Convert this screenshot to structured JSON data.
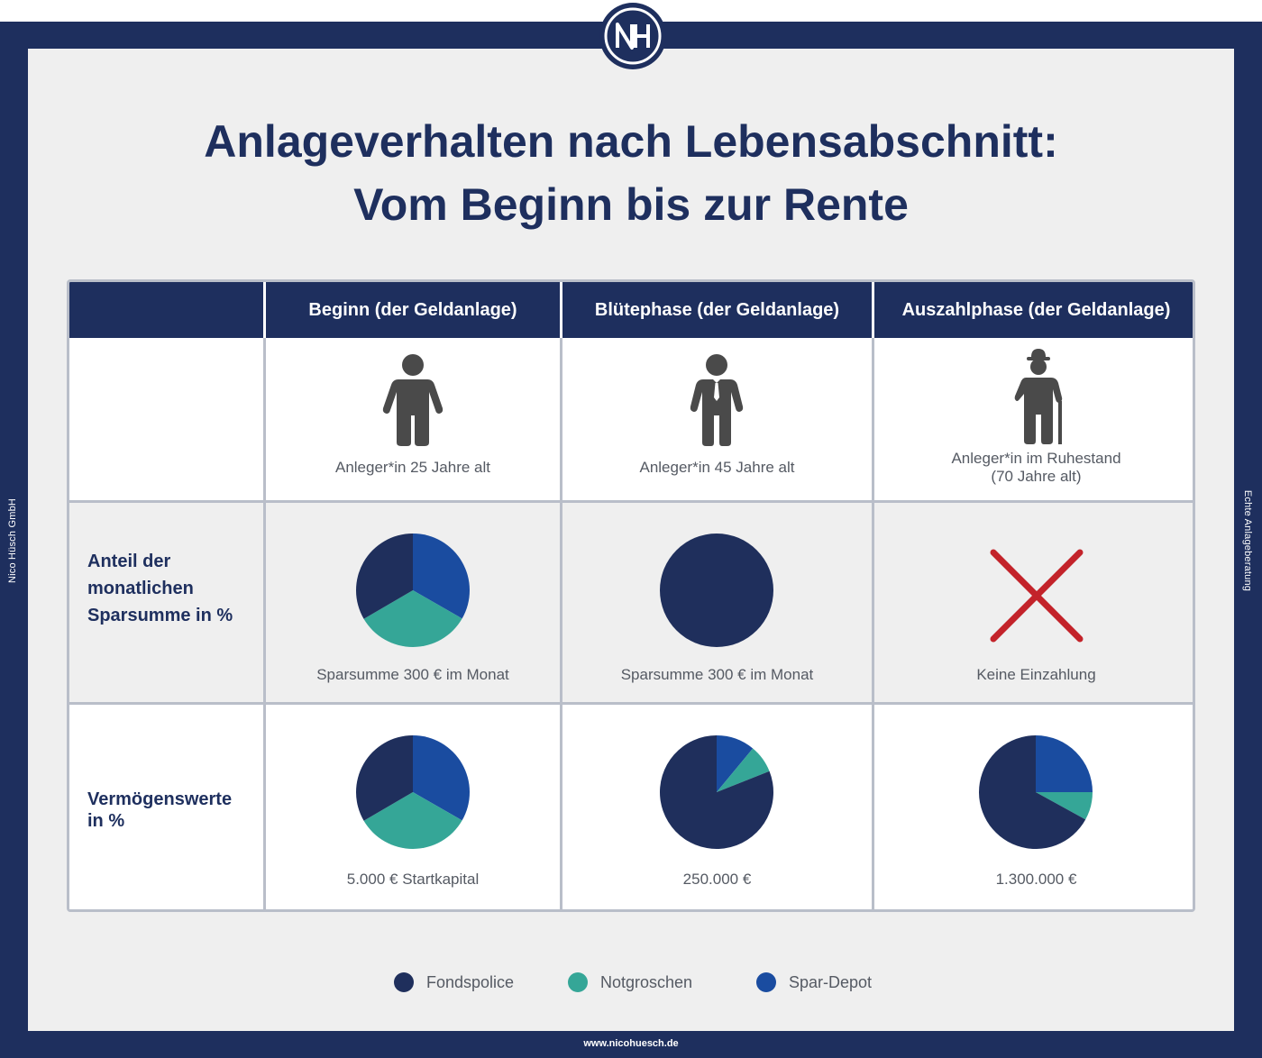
{
  "brand": {
    "logo_letters": "NH",
    "side_left": "Nico Hüsch GmbH",
    "side_right": "Echte Anlageberatung",
    "url": "www.nicohuesch.de"
  },
  "title": {
    "line1": "Anlageverhalten nach Lebensabschnitt:",
    "line2": "Vom Beginn bis zur Rente"
  },
  "colors": {
    "navy": "#1e2f5e",
    "fondspolice": "#1f2f5c",
    "notgroschen": "#35a697",
    "spardepot": "#1a4ca0",
    "cross": "#c3232a",
    "figure": "#4a4a4a"
  },
  "table": {
    "columns": [
      "Beginn (der Geldanlage)",
      "Blütephase (der Geldanlage)",
      "Auszahlphase (der Geldanlage)"
    ],
    "rows": {
      "person": {
        "captions": [
          "Anleger*in 25 Jahre alt",
          "Anleger*in 45 Jahre alt",
          "Anleger*in im Ruhestand",
          "(70 Jahre alt)"
        ]
      },
      "monthly": {
        "label_lines": [
          "Anteil der",
          "monatlichen",
          "Sparsumme in %"
        ],
        "captions": [
          "Sparsumme 300 € im Monat",
          "Sparsumme 300 € im Monat",
          "Keine Einzahlung"
        ]
      },
      "assets": {
        "label_lines": [
          "Vermögenswerte",
          "in %"
        ],
        "captions": [
          "5.000 € Startkapital",
          "250.000 €",
          "1.300.000 €"
        ]
      }
    }
  },
  "legend": [
    "Fondspolice",
    "Notgroschen",
    "Spar-Depot"
  ],
  "chart_data": [
    {
      "type": "pie",
      "title": "Anteil der monatlichen Sparsumme in % – Beginn",
      "labels": [
        "Spar-Depot",
        "Notgroschen",
        "Fondspolice"
      ],
      "values": [
        33.3,
        33.3,
        33.4
      ]
    },
    {
      "type": "pie",
      "title": "Anteil der monatlichen Sparsumme in % – Blütephase",
      "labels": [
        "Fondspolice"
      ],
      "values": [
        100
      ]
    },
    {
      "type": "pie",
      "title": "Vermögenswerte in % – Beginn",
      "labels": [
        "Spar-Depot",
        "Notgroschen",
        "Fondspolice"
      ],
      "values": [
        33.3,
        33.3,
        33.4
      ]
    },
    {
      "type": "pie",
      "title": "Vermögenswerte in % – Blütephase",
      "labels": [
        "Spar-Depot",
        "Notgroschen",
        "Fondspolice"
      ],
      "values": [
        11,
        8,
        81
      ]
    },
    {
      "type": "pie",
      "title": "Vermögenswerte in % – Auszahlphase",
      "labels": [
        "Spar-Depot",
        "Notgroschen",
        "Fondspolice"
      ],
      "values": [
        25,
        8,
        67
      ]
    }
  ]
}
